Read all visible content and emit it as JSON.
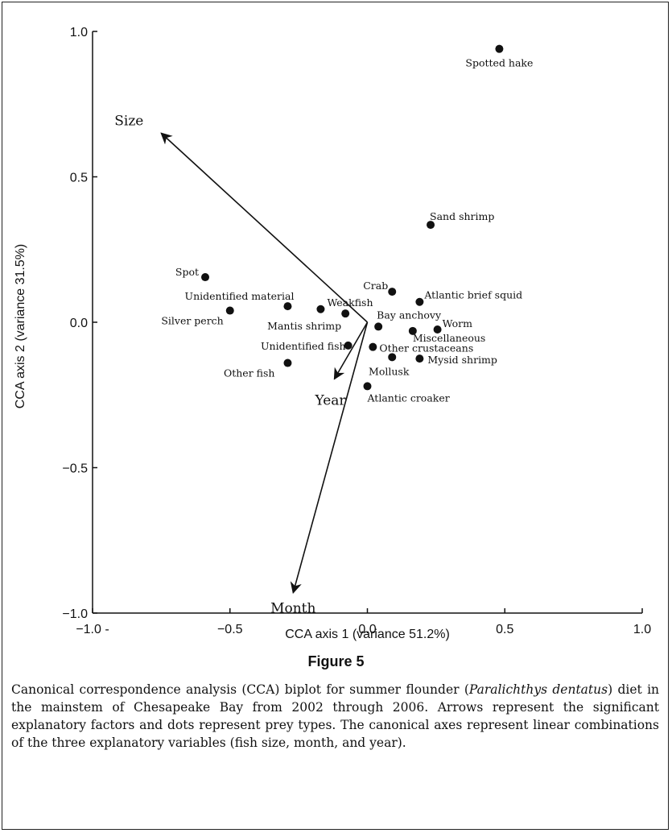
{
  "figure": {
    "title": "Figure 5",
    "caption_parts": [
      "Canonical correspondence analysis (CCA) biplot for summer flounder (",
      "Paralichthys dentatus",
      ") diet in the mainstem of Chesapeake Bay from 2002 through 2006. Arrows represent the significant explanatory factors and dots represent prey types. The canonical axes represent linear combinations of the three explanatory variables (fish size, month, and year)."
    ]
  },
  "chart_data": {
    "type": "scatter",
    "xlabel": "CCA axis 1 (variance 51.2%)",
    "ylabel": "CCA axis 2 (variance 31.5%)",
    "xlim": [
      -1.0,
      1.0
    ],
    "ylim": [
      -1.0,
      1.0
    ],
    "xticks": [
      -1.0,
      -0.5,
      0.0,
      0.5,
      1.0
    ],
    "yticks": [
      -1.0,
      -0.5,
      0.0,
      0.5,
      1.0
    ],
    "xtick_labels": [
      "−1.0 -",
      "−0.5",
      "0.0",
      "0.5",
      "1.0"
    ],
    "ytick_labels": [
      "−1.0",
      "−0.5",
      "0.0",
      "0.5",
      "1.0"
    ],
    "grid": false,
    "points": [
      {
        "name": "Spotted hake",
        "x": 0.48,
        "y": 0.94
      },
      {
        "name": "Sand  shrimp",
        "x": 0.23,
        "y": 0.335
      },
      {
        "name": "Spot",
        "x": -0.59,
        "y": 0.155
      },
      {
        "name": "Crab",
        "x": 0.09,
        "y": 0.105
      },
      {
        "name": "Atlantic brief squid",
        "x": 0.19,
        "y": 0.07
      },
      {
        "name": "Unidentified material",
        "x": -0.29,
        "y": 0.055
      },
      {
        "name": "Silver perch",
        "x": -0.5,
        "y": 0.04
      },
      {
        "name": "Weakfish",
        "x": -0.17,
        "y": 0.045
      },
      {
        "name": "Mantis shrimp",
        "x": -0.08,
        "y": 0.03
      },
      {
        "name": "Bay anchovy",
        "x": 0.04,
        "y": -0.015
      },
      {
        "name": "Worm",
        "x": 0.255,
        "y": -0.025
      },
      {
        "name": "Miscellaneous",
        "x": 0.165,
        "y": -0.03
      },
      {
        "name": "Unidentified fish",
        "x": -0.07,
        "y": -0.08
      },
      {
        "name": "Other crustaceans",
        "x": 0.02,
        "y": -0.085
      },
      {
        "name": "Mollusk",
        "x": 0.09,
        "y": -0.12
      },
      {
        "name": "Mysid shrimp",
        "x": 0.19,
        "y": -0.125
      },
      {
        "name": "Other fish",
        "x": -0.29,
        "y": -0.14
      },
      {
        "name": "Atlantic croaker",
        "x": 0.0,
        "y": -0.22
      }
    ],
    "vectors": [
      {
        "name": "Size",
        "x": -0.75,
        "y": 0.65
      },
      {
        "name": "Year",
        "x": -0.12,
        "y": -0.195
      },
      {
        "name": "Month",
        "x": -0.27,
        "y": -0.93
      }
    ]
  }
}
